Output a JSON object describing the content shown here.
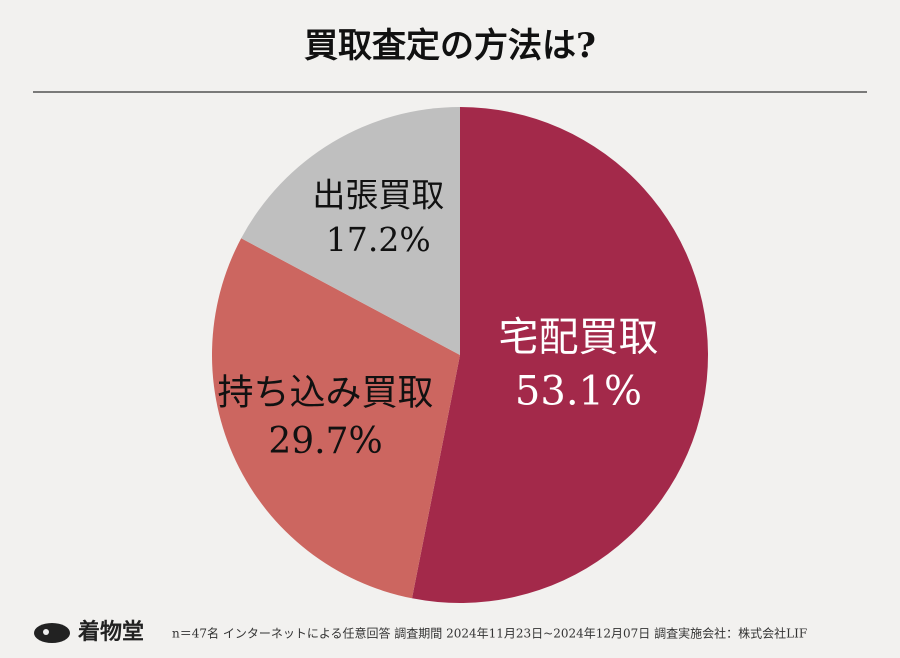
{
  "chart_data": {
    "type": "pie",
    "title": "買取査定の方法は?",
    "categories": [
      "宅配買取",
      "持ち込み買取",
      "出張買取"
    ],
    "values": [
      53.1,
      29.7,
      17.2
    ],
    "value_labels": [
      "53.1%",
      "29.7%",
      "17.2%"
    ],
    "colors": [
      "#a3294a",
      "#cc6660",
      "#bfbfbf"
    ]
  },
  "footer": {
    "logo": "着物堂",
    "note": "n＝47名 インターネットによる任意回答 調査期間 2024年11月23日~2024年12月07日 調査実施会社：株式会社LIF"
  }
}
